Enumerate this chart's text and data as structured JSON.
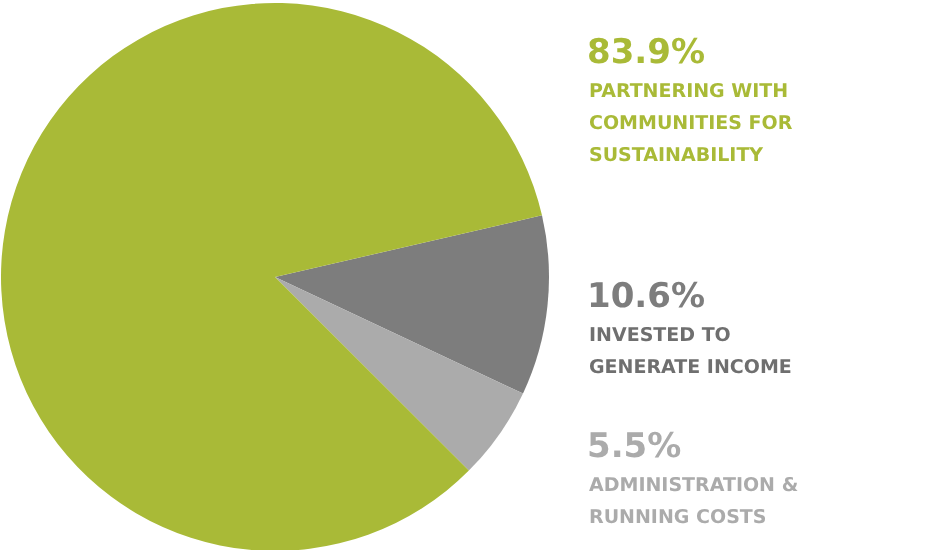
{
  "chart_data": {
    "type": "pie",
    "categories": [
      "PARTNERING WITH\nCOMMUNITIES FOR\nSUSTAINABILITY",
      "INVESTED TO\nGENERATE INCOME",
      "ADMINISTRATION &\nRUNNING COSTS"
    ],
    "values": [
      83.9,
      10.6,
      5.5
    ],
    "colors": [
      "#a9ba37",
      "#7d7d7d",
      "#ababab"
    ],
    "value_labels": [
      "83.9%",
      "10.6%",
      "5.5%"
    ]
  }
}
